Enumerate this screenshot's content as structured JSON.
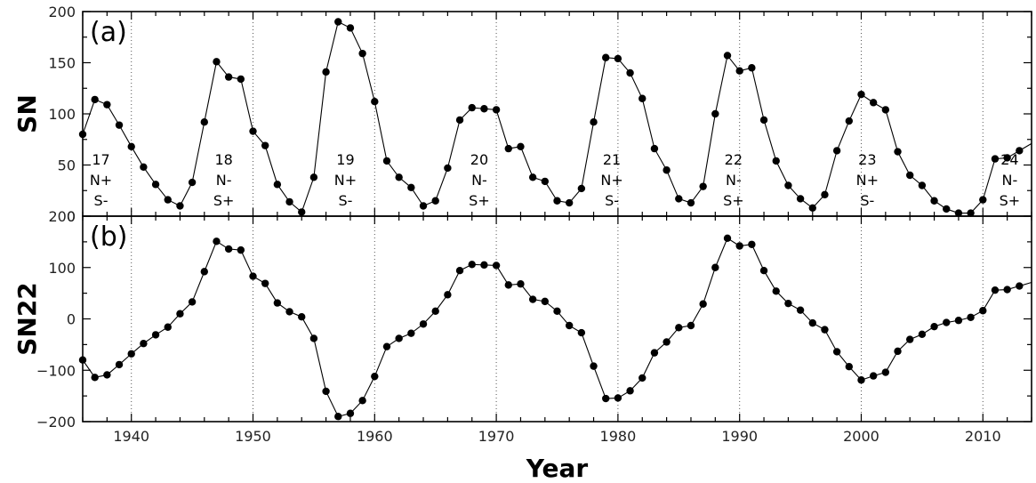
{
  "chart_data": [
    {
      "panel_label": "(a)",
      "type": "line",
      "ylabel": "SN",
      "xlabel": "",
      "xlim": [
        1936,
        2014
      ],
      "ylim": [
        0,
        200
      ],
      "yticks": [
        "0",
        "50",
        "100",
        "150",
        "200"
      ],
      "xticks": [],
      "x_gridlines": [
        1940,
        1950,
        1960,
        1970,
        1980,
        1990,
        2000,
        2010
      ],
      "cycle_labels": [
        {
          "x": 1937.5,
          "lines": [
            "17",
            "N+",
            "S-"
          ]
        },
        {
          "x": 1947.6,
          "lines": [
            "18",
            "N-",
            "S+"
          ]
        },
        {
          "x": 1957.6,
          "lines": [
            "19",
            "N+",
            "S-"
          ]
        },
        {
          "x": 1968.6,
          "lines": [
            "20",
            "N-",
            "S+"
          ]
        },
        {
          "x": 1979.5,
          "lines": [
            "21",
            "N+",
            "S-"
          ]
        },
        {
          "x": 1989.5,
          "lines": [
            "22",
            "N-",
            "S+"
          ]
        },
        {
          "x": 2000.5,
          "lines": [
            "23",
            "N+",
            "S-"
          ]
        },
        {
          "x": 2012.2,
          "lines": [
            "24",
            "N-",
            "S+"
          ]
        }
      ],
      "x": [
        1936,
        1937,
        1938,
        1939,
        1940,
        1941,
        1942,
        1943,
        1944,
        1945,
        1946,
        1947,
        1948,
        1949,
        1950,
        1951,
        1952,
        1953,
        1954,
        1955,
        1956,
        1957,
        1958,
        1959,
        1960,
        1961,
        1962,
        1963,
        1964,
        1965,
        1966,
        1967,
        1968,
        1969,
        1970,
        1971,
        1972,
        1973,
        1974,
        1975,
        1976,
        1977,
        1978,
        1979,
        1980,
        1981,
        1982,
        1983,
        1984,
        1985,
        1986,
        1987,
        1988,
        1989,
        1990,
        1991,
        1992,
        1993,
        1994,
        1995,
        1996,
        1997,
        1998,
        1999,
        2000,
        2001,
        2002,
        2003,
        2004,
        2005,
        2006,
        2007,
        2008,
        2009,
        2010,
        2011,
        2012,
        2013
      ],
      "y": [
        80,
        114,
        109,
        89,
        68,
        48,
        31,
        16,
        10,
        33,
        92,
        151,
        136,
        134,
        83,
        69,
        31,
        14,
        4,
        38,
        141,
        190,
        184,
        159,
        112,
        54,
        38,
        28,
        10,
        15,
        47,
        94,
        106,
        105,
        104,
        66,
        68,
        38,
        34,
        15,
        13,
        27,
        92,
        155,
        154,
        140,
        115,
        66,
        45,
        17,
        13,
        29,
        100,
        157,
        142,
        145,
        94,
        54,
        30,
        17,
        8,
        21,
        64,
        93,
        119,
        111,
        104,
        63,
        40,
        30,
        15,
        7,
        3,
        3,
        16,
        56,
        57,
        64
      ]
    },
    {
      "panel_label": "(b)",
      "type": "line",
      "ylabel": "SN22",
      "xlabel": "Year",
      "xlim": [
        1936,
        2014
      ],
      "ylim": [
        -200,
        200
      ],
      "yticks": [
        "−200",
        "−100",
        "0",
        "100",
        "200"
      ],
      "xticks": [
        "1940",
        "1950",
        "1960",
        "1970",
        "1980",
        "1990",
        "2000",
        "2010"
      ],
      "x_gridlines": [
        1940,
        1950,
        1960,
        1970,
        1980,
        1990,
        2000,
        2010
      ],
      "x": [
        1936,
        1937,
        1938,
        1939,
        1940,
        1941,
        1942,
        1943,
        1944,
        1945,
        1946,
        1947,
        1948,
        1949,
        1950,
        1951,
        1952,
        1953,
        1954,
        1955,
        1956,
        1957,
        1958,
        1959,
        1960,
        1961,
        1962,
        1963,
        1964,
        1965,
        1966,
        1967,
        1968,
        1969,
        1970,
        1971,
        1972,
        1973,
        1974,
        1975,
        1976,
        1977,
        1978,
        1979,
        1980,
        1981,
        1982,
        1983,
        1984,
        1985,
        1986,
        1987,
        1988,
        1989,
        1990,
        1991,
        1992,
        1993,
        1994,
        1995,
        1996,
        1997,
        1998,
        1999,
        2000,
        2001,
        2002,
        2003,
        2004,
        2005,
        2006,
        2007,
        2008,
        2009,
        2010,
        2011,
        2012,
        2013
      ],
      "y": [
        -80,
        -114,
        -109,
        -89,
        -68,
        -48,
        -31,
        -16,
        10,
        33,
        92,
        151,
        136,
        134,
        83,
        69,
        31,
        14,
        4,
        -38,
        -141,
        -190,
        -184,
        -159,
        -112,
        -54,
        -38,
        -28,
        -10,
        15,
        47,
        94,
        106,
        105,
        104,
        66,
        68,
        38,
        34,
        15,
        -13,
        -27,
        -92,
        -155,
        -154,
        -140,
        -115,
        -66,
        -45,
        -17,
        -13,
        29,
        100,
        157,
        142,
        145,
        94,
        54,
        30,
        17,
        -8,
        -21,
        -64,
        -93,
        -119,
        -111,
        -104,
        -63,
        -40,
        -30,
        -15,
        -7,
        -3,
        3,
        16,
        56,
        57,
        64
      ]
    }
  ]
}
